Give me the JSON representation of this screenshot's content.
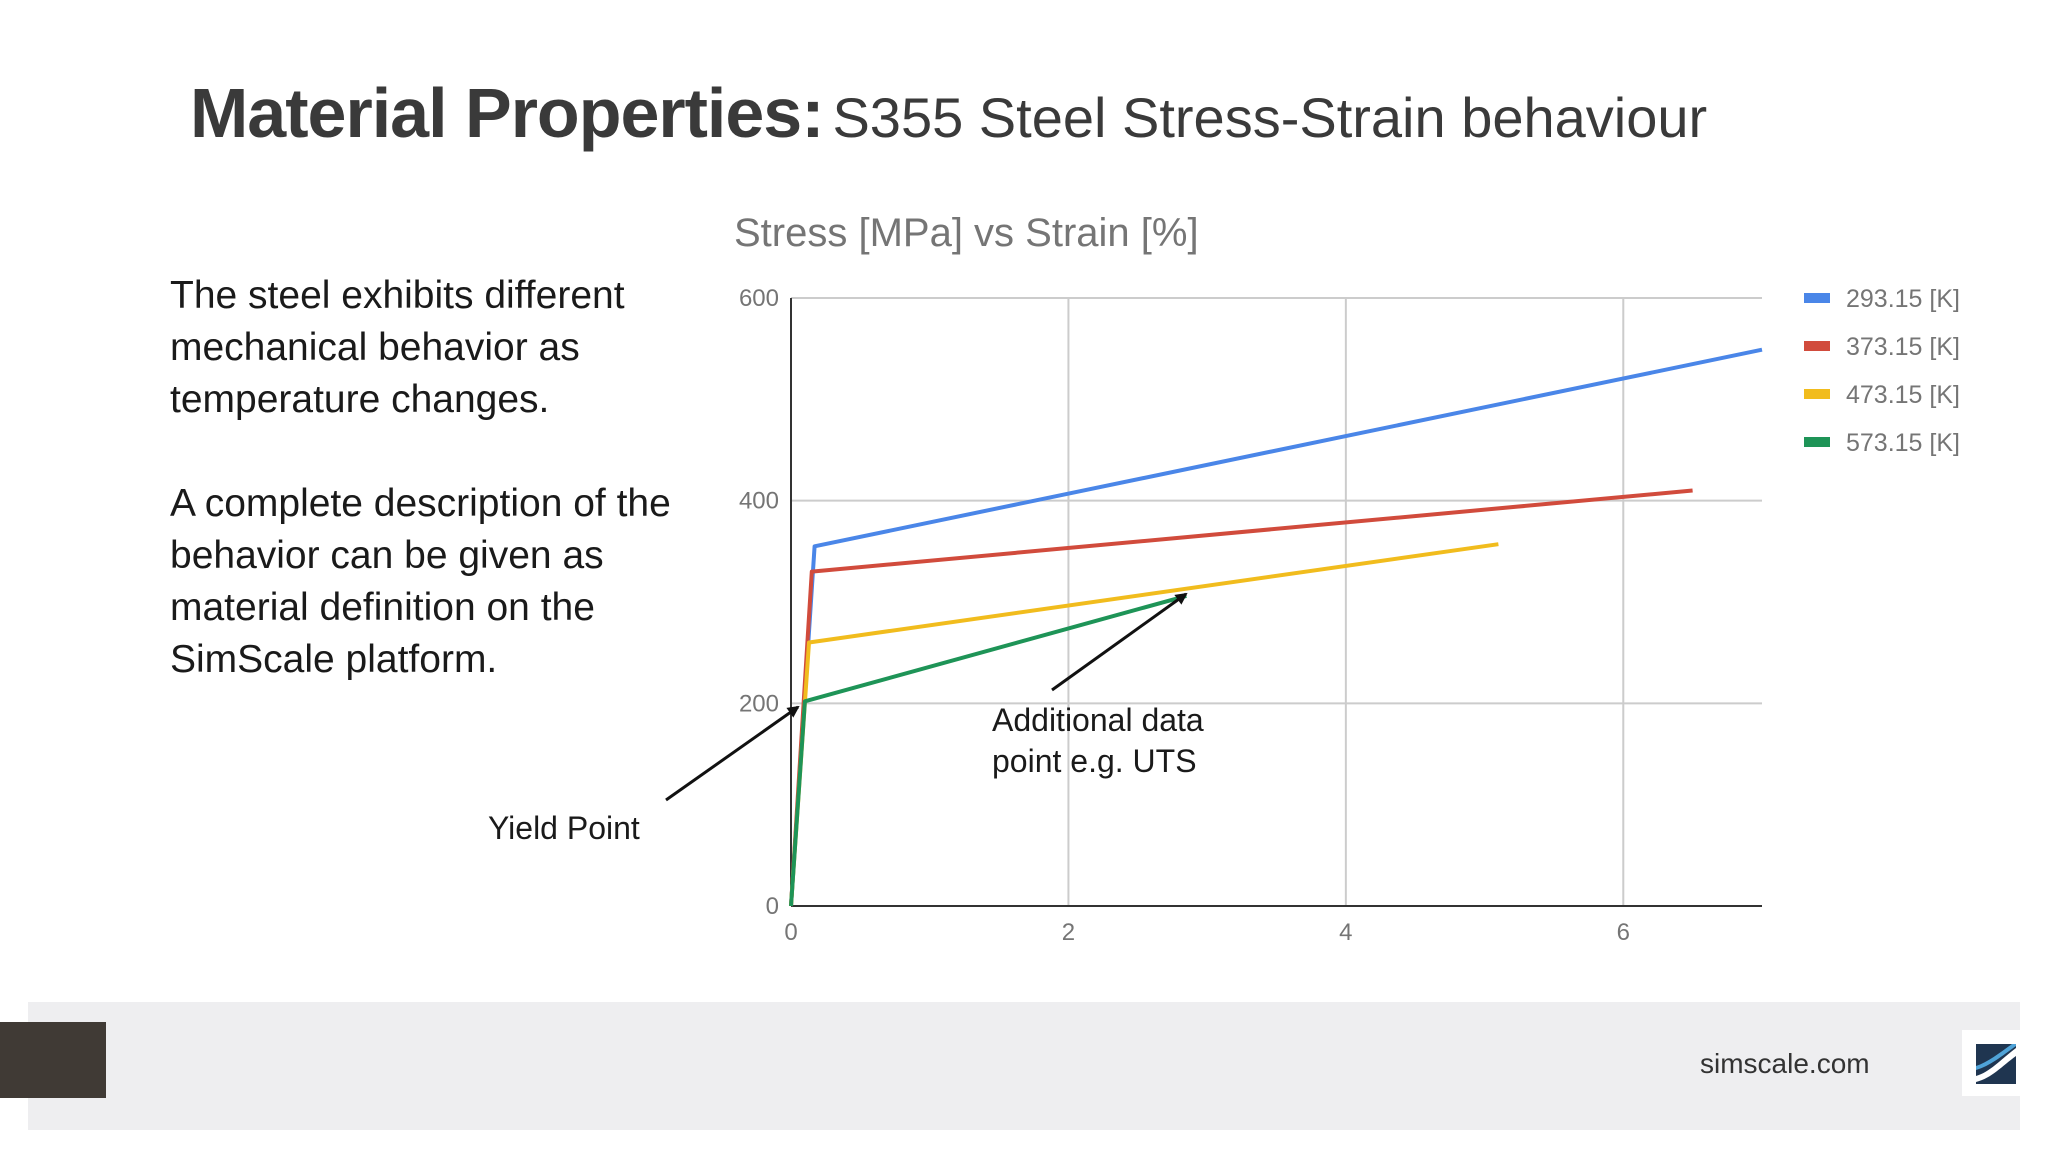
{
  "slide": {
    "title_bold": "Material Properties:",
    "title_rest": "S355 Steel Stress-Strain behaviour",
    "paragraph_1": "The steel exhibits different mechanical behavior as temperature changes.",
    "paragraph_2": "A complete description of the behavior can be given as material definition on the SimScale platform.",
    "annotation_yield": "Yield Point",
    "annotation_uts": "Additional data point e.g. UTS",
    "footer_url": "simscale.com",
    "footer_block_color": "#403a35",
    "logo_icon": "simscale-logo-icon"
  },
  "chart_data": {
    "type": "line",
    "title": "Stress [MPa] vs Strain [%]",
    "xlabel": "",
    "ylabel": "",
    "xlim": [
      0,
      7
    ],
    "ylim": [
      0,
      600
    ],
    "xticks": [
      0,
      2,
      4,
      6
    ],
    "yticks": [
      0,
      200,
      400,
      600
    ],
    "grid": true,
    "legend_position": "right",
    "series": [
      {
        "name": "293.15 [K]",
        "color": "#4a86e8",
        "points": [
          [
            0,
            0
          ],
          [
            0.17,
            355
          ],
          [
            7.0,
            549
          ]
        ]
      },
      {
        "name": "373.15 [K]",
        "color": "#d14b3c",
        "points": [
          [
            0,
            0
          ],
          [
            0.15,
            330
          ],
          [
            6.5,
            410
          ]
        ]
      },
      {
        "name": "473.15 [K]",
        "color": "#f1bc1d",
        "points": [
          [
            0,
            0
          ],
          [
            0.13,
            260
          ],
          [
            5.1,
            357
          ]
        ]
      },
      {
        "name": "573.15 [K]",
        "color": "#1e9457",
        "points": [
          [
            0,
            0
          ],
          [
            0.1,
            202
          ],
          [
            2.85,
            306
          ]
        ]
      }
    ]
  }
}
